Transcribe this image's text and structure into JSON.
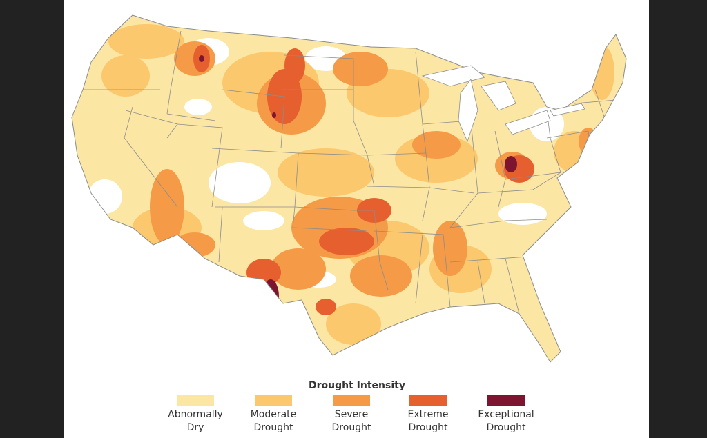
{
  "legend": {
    "title": "Drought Intensity",
    "items": [
      {
        "label": "Abnormally\nDry",
        "color": "#FCE6A4"
      },
      {
        "label": "Moderate\nDrought",
        "color": "#FBC86E"
      },
      {
        "label": "Severe\nDrought",
        "color": "#F59A46"
      },
      {
        "label": "Extreme\nDrought",
        "color": "#E65F2F"
      },
      {
        "label": "Exceptional\nDrought",
        "color": "#7D1531"
      }
    ]
  },
  "map": {
    "base_color": "#FCE6A4",
    "no_drought_color": "#FFFFFF",
    "border_color": "#8C8C8C",
    "page_background": "#222222"
  }
}
